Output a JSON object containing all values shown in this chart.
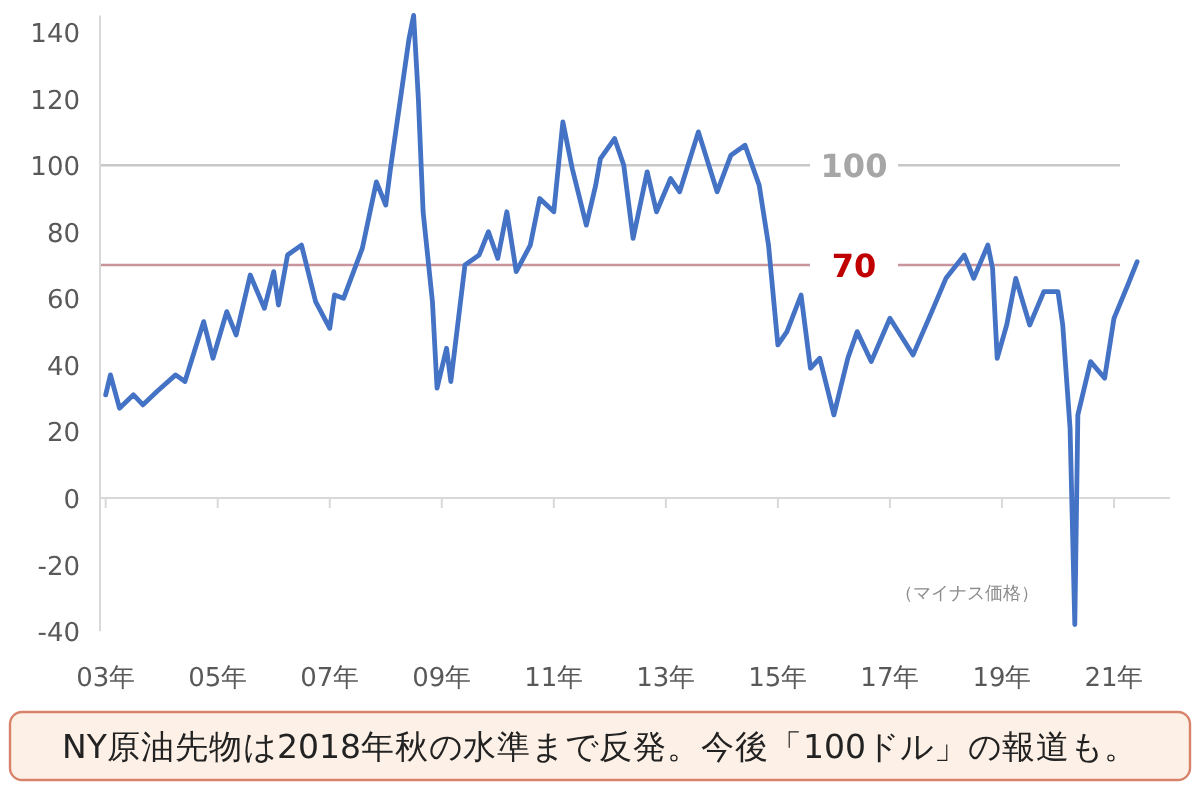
{
  "chart_data": {
    "type": "line",
    "x": [
      "2003-01",
      "2003-02",
      "2003-04",
      "2003-07",
      "2003-09",
      "2003-12",
      "2004-04",
      "2004-06",
      "2004-10",
      "2004-12",
      "2005-03",
      "2005-05",
      "2005-08",
      "2005-11",
      "2006-01",
      "2006-02",
      "2006-04",
      "2006-07",
      "2006-10",
      "2007-01",
      "2007-02",
      "2007-04",
      "2007-08",
      "2007-11",
      "2008-01",
      "2008-02",
      "2008-06",
      "2008-07",
      "2008-08",
      "2008-09",
      "2008-11",
      "2008-12",
      "2009-02",
      "2009-03",
      "2009-06",
      "2009-09",
      "2009-11",
      "2010-01",
      "2010-03",
      "2010-05",
      "2010-08",
      "2010-10",
      "2011-01",
      "2011-03",
      "2011-05",
      "2011-08",
      "2011-10",
      "2011-11",
      "2012-02",
      "2012-04",
      "2012-06",
      "2012-09",
      "2012-11",
      "2013-02",
      "2013-04",
      "2013-08",
      "2013-12",
      "2014-03",
      "2014-06",
      "2014-09",
      "2014-11",
      "2015-01",
      "2015-03",
      "2015-06",
      "2015-08",
      "2015-10",
      "2016-01",
      "2016-04",
      "2016-06",
      "2016-09",
      "2017-01",
      "2017-06",
      "2017-10",
      "2018-01",
      "2018-05",
      "2018-07",
      "2018-10",
      "2018-11",
      "2018-12",
      "2019-02",
      "2019-04",
      "2019-07",
      "2019-10",
      "2020-01",
      "2020-02",
      "2020-03-20",
      "2020-04-20",
      "2020-05-10",
      "2020-08",
      "2020-11",
      "2021-01",
      "2021-04",
      "2021-06"
    ],
    "series": [
      {
        "color": "#4472c4",
        "values": [
          31,
          37,
          27,
          31,
          28,
          32,
          37,
          35,
          53,
          42,
          56,
          49,
          67,
          57,
          68,
          58,
          73,
          76,
          59,
          51,
          61,
          60,
          75,
          95,
          88,
          99,
          138,
          145,
          120,
          86,
          59,
          33,
          45,
          35,
          70,
          73,
          80,
          72,
          86,
          68,
          76,
          90,
          86,
          113,
          99,
          82,
          94,
          102,
          108,
          100,
          78,
          98,
          86,
          96,
          92,
          110,
          92,
          103,
          106,
          94,
          76,
          46,
          50,
          61,
          39,
          42,
          25,
          42,
          50,
          41,
          54,
          43,
          56,
          66,
          73,
          66,
          76,
          69,
          42,
          52,
          66,
          52,
          62,
          62,
          52,
          21,
          -38,
          25,
          41,
          36,
          54,
          64,
          71
        ]
      }
    ],
    "xlim": [
      "2002-11-25",
      "2022-01-01"
    ],
    "xticks": [
      {
        "value": "2003",
        "label": "03年"
      },
      {
        "value": "2005",
        "label": "05年"
      },
      {
        "value": "2007",
        "label": "07年"
      },
      {
        "value": "2009",
        "label": "09年"
      },
      {
        "value": "2011",
        "label": "11年"
      },
      {
        "value": "2013",
        "label": "13年"
      },
      {
        "value": "2015",
        "label": "15年"
      },
      {
        "value": "2017",
        "label": "17年"
      },
      {
        "value": "2019",
        "label": "19年"
      },
      {
        "value": "2021",
        "label": "21年"
      }
    ],
    "ylim": [
      -40,
      145
    ],
    "yticks": [
      -40,
      -20,
      0,
      20,
      40,
      60,
      80,
      100,
      120,
      140
    ],
    "grid": false,
    "line_style": "solid",
    "ref_lines": [
      {
        "axis": "y",
        "value": 100,
        "label": "100",
        "color": "#c8c8c8"
      },
      {
        "axis": "y",
        "value": 70,
        "label": "70",
        "color": "#c9959c"
      }
    ],
    "annotations": [
      {
        "text": "（マイナス価格）",
        "x": "2020-04-20",
        "y": -28
      },
      "NY原油先物は2018年秋の水準まで反発。今後「100ドル」の報道も。"
    ]
  }
}
